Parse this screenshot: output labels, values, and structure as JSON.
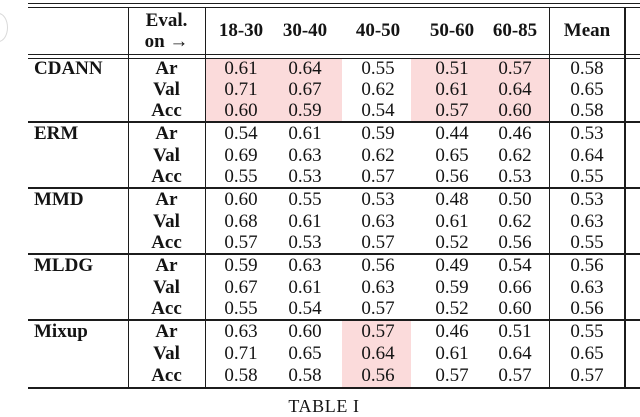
{
  "table": {
    "header": {
      "eval_line1": "Eval.",
      "eval_line2": "on →",
      "age_columns": [
        "18-30",
        "30-40",
        "40-50",
        "50-60",
        "60-85"
      ],
      "mean_label": "Mean"
    },
    "groups": [
      {
        "method": "CDANN",
        "highlighted_columns": [
          0,
          1,
          3,
          4
        ],
        "rows": [
          {
            "label": "Ar",
            "values": [
              "0.61",
              "0.64",
              "0.55",
              "0.51",
              "0.57"
            ],
            "mean": "0.58"
          },
          {
            "label": "Val",
            "values": [
              "0.71",
              "0.67",
              "0.62",
              "0.61",
              "0.64"
            ],
            "mean": "0.65"
          },
          {
            "label": "Acc",
            "values": [
              "0.60",
              "0.59",
              "0.54",
              "0.57",
              "0.60"
            ],
            "mean": "0.58"
          }
        ]
      },
      {
        "method": "ERM",
        "highlighted_columns": [],
        "rows": [
          {
            "label": "Ar",
            "values": [
              "0.54",
              "0.61",
              "0.59",
              "0.44",
              "0.46"
            ],
            "mean": "0.53"
          },
          {
            "label": "Val",
            "values": [
              "0.69",
              "0.63",
              "0.62",
              "0.65",
              "0.62"
            ],
            "mean": "0.64"
          },
          {
            "label": "Acc",
            "values": [
              "0.55",
              "0.53",
              "0.57",
              "0.56",
              "0.53"
            ],
            "mean": "0.55"
          }
        ]
      },
      {
        "method": "MMD",
        "highlighted_columns": [],
        "rows": [
          {
            "label": "Ar",
            "values": [
              "0.60",
              "0.55",
              "0.53",
              "0.48",
              "0.50"
            ],
            "mean": "0.53"
          },
          {
            "label": "Val",
            "values": [
              "0.68",
              "0.61",
              "0.63",
              "0.61",
              "0.62"
            ],
            "mean": "0.63"
          },
          {
            "label": "Acc",
            "values": [
              "0.57",
              "0.53",
              "0.57",
              "0.52",
              "0.56"
            ],
            "mean": "0.55"
          }
        ]
      },
      {
        "method": "MLDG",
        "highlighted_columns": [],
        "rows": [
          {
            "label": "Ar",
            "values": [
              "0.59",
              "0.63",
              "0.56",
              "0.49",
              "0.54"
            ],
            "mean": "0.56"
          },
          {
            "label": "Val",
            "values": [
              "0.67",
              "0.61",
              "0.63",
              "0.59",
              "0.66"
            ],
            "mean": "0.63"
          },
          {
            "label": "Acc",
            "values": [
              "0.55",
              "0.54",
              "0.57",
              "0.52",
              "0.60"
            ],
            "mean": "0.56"
          }
        ]
      },
      {
        "method": "Mixup",
        "highlighted_columns": [
          2
        ],
        "rows": [
          {
            "label": "Ar",
            "values": [
              "0.63",
              "0.60",
              "0.57",
              "0.46",
              "0.51"
            ],
            "mean": "0.55"
          },
          {
            "label": "Val",
            "values": [
              "0.71",
              "0.65",
              "0.64",
              "0.61",
              "0.64"
            ],
            "mean": "0.65"
          },
          {
            "label": "Acc",
            "values": [
              "0.58",
              "0.58",
              "0.56",
              "0.57",
              "0.57"
            ],
            "mean": "0.57"
          }
        ]
      }
    ],
    "caption": "TABLE I",
    "highlight_color": "#fbdbdb"
  }
}
